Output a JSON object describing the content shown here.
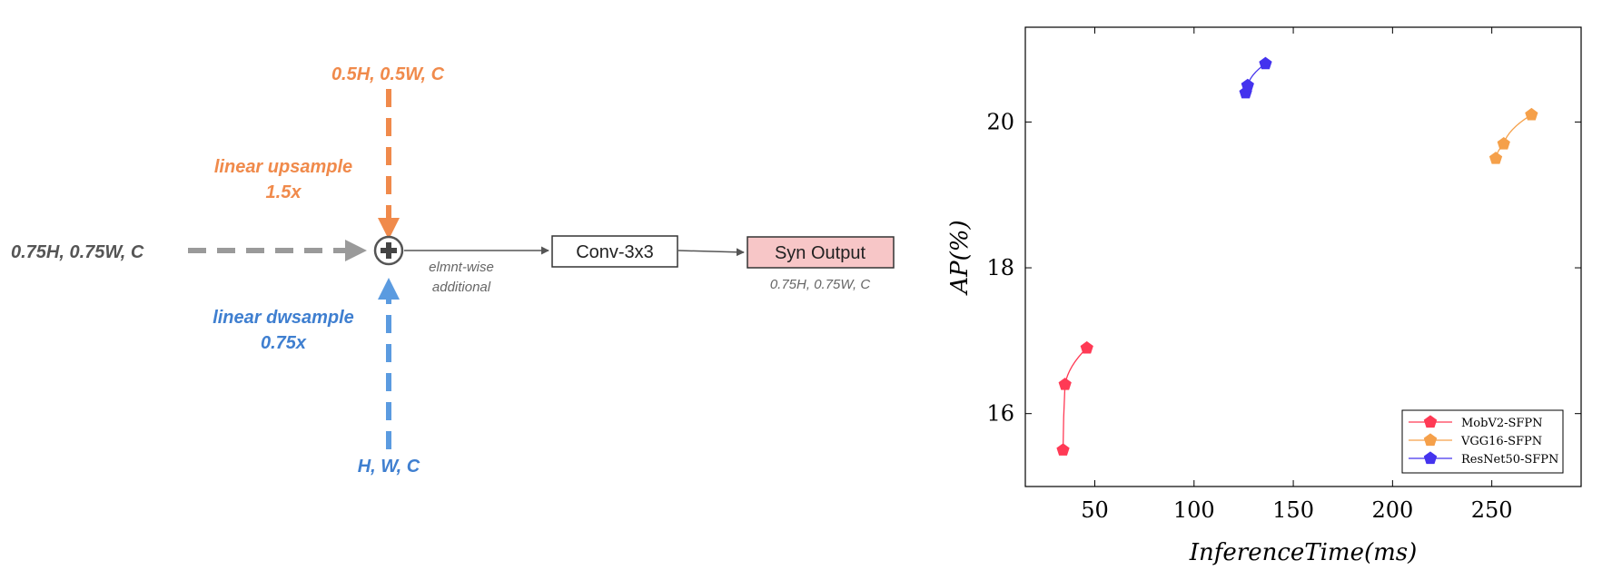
{
  "diagram": {
    "colors": {
      "orange": "#f08a4b",
      "blue": "#3f7fd0",
      "gray": "#666666",
      "dark": "#555555",
      "synFill": "#f7c6c7"
    },
    "top_input_label": "0.5H, 0.5W, C",
    "upsample_line1": "linear upsample",
    "upsample_line2": "1.5x",
    "left_input_label": "0.75H, 0.75W, C",
    "dwsample_line1": "linear dwsample",
    "dwsample_line2": "0.75x",
    "bottom_input_label": "H, W, C",
    "elementwise_line1": "elmnt-wise",
    "elementwise_line2": "additional",
    "conv_label": "Conv-3x3",
    "output_label": "Syn Output",
    "output_dims": "0.75H, 0.75W, C",
    "icons": {
      "sum_node": "plus-circle-icon"
    }
  },
  "chart_data": {
    "type": "line",
    "xlabel": "InferenceTime(ms)",
    "ylabel": "AP(%)",
    "xlim": [
      15,
      295
    ],
    "ylim": [
      15,
      21.3
    ],
    "xticks": [
      50,
      100,
      150,
      200,
      250
    ],
    "yticks": [
      16,
      18,
      20
    ],
    "grid": false,
    "legend_position": "bottom-right",
    "marker": "pentagon",
    "series": [
      {
        "name": "MobV2-SFPN",
        "color": "#ff3a55",
        "x": [
          34,
          35,
          46
        ],
        "y": [
          15.5,
          16.4,
          16.9
        ]
      },
      {
        "name": "VGG16-SFPN",
        "color": "#f5a04a",
        "x": [
          252,
          256,
          270
        ],
        "y": [
          19.5,
          19.7,
          20.1
        ]
      },
      {
        "name": "ResNet50-SFPN",
        "color": "#4433ee",
        "x": [
          126,
          127,
          136
        ],
        "y": [
          20.4,
          20.5,
          20.8
        ]
      }
    ]
  }
}
